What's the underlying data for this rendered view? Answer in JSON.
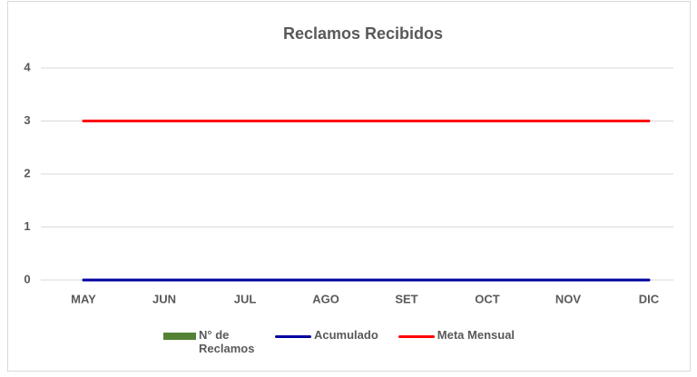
{
  "chart_data": {
    "type": "bar",
    "title": "Reclamos Recibidos",
    "categories": [
      "MAY",
      "JUN",
      "JUL",
      "AGO",
      "SET",
      "OCT",
      "NOV",
      "DIC"
    ],
    "series": [
      {
        "name": "N° de Reclamos",
        "color": "#548235",
        "type": "bar",
        "values": [
          0,
          0,
          0,
          0,
          0,
          0,
          0,
          0
        ]
      },
      {
        "name": "Acumulado",
        "color": "#0000a0",
        "type": "line",
        "values": [
          0,
          0,
          0,
          0,
          0,
          0,
          0,
          0
        ]
      },
      {
        "name": "Meta Mensual",
        "color": "#ff0000",
        "type": "line",
        "values": [
          3,
          3,
          3,
          3,
          3,
          3,
          3,
          3
        ]
      }
    ],
    "ylim": [
      0,
      4
    ],
    "yticks": [
      0,
      1,
      2,
      3,
      4
    ],
    "grid": true,
    "legend": "bottom"
  }
}
